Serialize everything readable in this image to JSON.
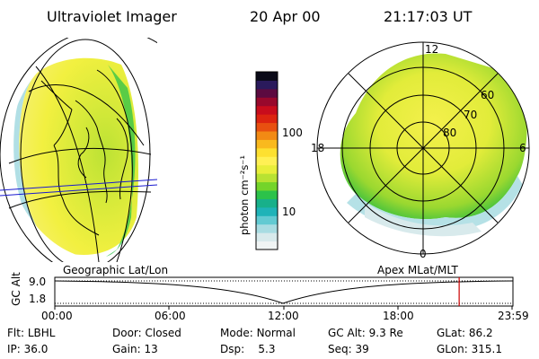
{
  "header": {
    "title": "Ultraviolet Imager",
    "date": "20 Apr 00",
    "time": "21:17:03 UT"
  },
  "colorbar": {
    "unit_label": "photon cm⁻²s⁻¹",
    "ticks": [
      {
        "label": "100",
        "value": 100
      },
      {
        "label": "10",
        "value": 10
      }
    ],
    "colors": [
      "#f0f4f4",
      "#d8eaec",
      "#a8dce2",
      "#62cad2",
      "#1fb3b8",
      "#18b08a",
      "#2cc24a",
      "#74d42a",
      "#b8e232",
      "#e8ee3a",
      "#fff054",
      "#fde030",
      "#f9b91e",
      "#f28a14",
      "#e85010",
      "#dc2410",
      "#c80c1c",
      "#98082c",
      "#5c0a40",
      "#2a1a5c",
      "#0a0a18"
    ]
  },
  "polar": {
    "lat_labels": [
      "60",
      "70",
      "80"
    ],
    "mlt_labels": {
      "top": "12",
      "left": "18",
      "right": "6",
      "bottom": "0"
    }
  },
  "timeline": {
    "left_label": "Geographic Lat/Lon",
    "right_label": "Apex MLat/MLT",
    "axis_title": "GC Alt",
    "y_ticks": [
      "9.0",
      "1.8"
    ],
    "x_ticks": [
      "00:00",
      "06:00",
      "12:00",
      "18:00",
      "23:59"
    ],
    "current_time_fraction": 0.8826,
    "marker_color": "#cc0000"
  },
  "status": [
    [
      {
        "label": "Flt:",
        "value": "LBHL"
      },
      {
        "label": "Door:",
        "value": "Closed"
      },
      {
        "label": "Mode:",
        "value": "Normal"
      },
      {
        "label": "GC Alt:",
        "value": "9.3 Re"
      },
      {
        "label": "GLat:",
        "value": "86.2"
      }
    ],
    [
      {
        "label": "IP:",
        "value": "36.0"
      },
      {
        "label": "Gain:",
        "value": "13"
      },
      {
        "label": "Dsp:",
        "value": "5.3"
      },
      {
        "label": "Seq:",
        "value": "39"
      },
      {
        "label": "GLon:",
        "value": "315.1"
      }
    ]
  ]
}
